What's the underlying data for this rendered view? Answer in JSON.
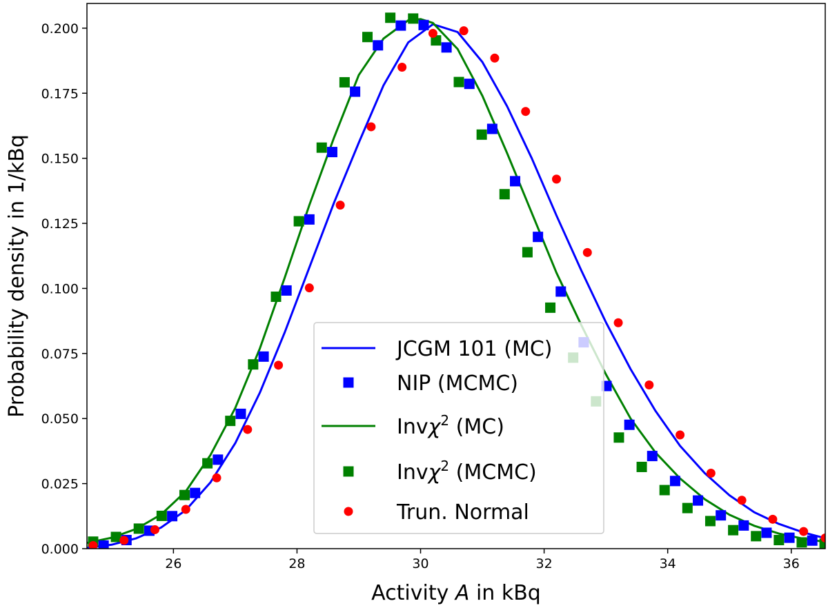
{
  "chart_data": {
    "type": "line",
    "title": "",
    "xlabel_prefix": "Activity ",
    "xlabel_var": "A",
    "xlabel_suffix": " in kBq",
    "ylabel": "Probability density in 1/kBq",
    "xlim": [
      24.6,
      36.55
    ],
    "ylim": [
      0.0,
      0.2095
    ],
    "xticks": [
      26,
      28,
      30,
      32,
      34,
      36
    ],
    "yticks": [
      0.0,
      0.025,
      0.05,
      0.075,
      0.1,
      0.125,
      0.15,
      0.175,
      0.2
    ],
    "xtick_labels": [
      "26",
      "28",
      "30",
      "32",
      "34",
      "36"
    ],
    "ytick_labels": [
      "0.000",
      "0.025",
      "0.050",
      "0.075",
      "0.100",
      "0.125",
      "0.150",
      "0.175",
      "0.200"
    ],
    "grid": false,
    "legend_position": "lower-center",
    "series": [
      {
        "name": "JCGM 101 (MC)",
        "legend_main": "JCGM 101 (MC)",
        "kind": "line",
        "color": "#0000ff",
        "x": [
          24.6,
          25.0,
          25.4,
          25.8,
          26.2,
          26.6,
          27.0,
          27.4,
          27.8,
          28.2,
          28.6,
          29.0,
          29.4,
          29.8,
          30.2,
          30.6,
          31.0,
          31.4,
          31.8,
          32.2,
          32.6,
          33.0,
          33.4,
          33.8,
          34.2,
          34.6,
          35.0,
          35.4,
          35.8,
          36.2,
          36.55
        ],
        "y": [
          0.0003,
          0.0015,
          0.004,
          0.0081,
          0.0148,
          0.0255,
          0.0405,
          0.06,
          0.083,
          0.108,
          0.133,
          0.156,
          0.178,
          0.1945,
          0.2015,
          0.1985,
          0.187,
          0.17,
          0.15,
          0.128,
          0.107,
          0.087,
          0.069,
          0.053,
          0.0395,
          0.029,
          0.0205,
          0.014,
          0.0095,
          0.0062,
          0.004
        ]
      },
      {
        "name": "NIP (MCMC)",
        "legend_main": "NIP (MCMC)",
        "kind": "square",
        "color": "#0000ff",
        "x": [
          24.87,
          25.24,
          25.61,
          25.98,
          26.35,
          26.72,
          27.09,
          27.46,
          27.83,
          28.2,
          28.57,
          28.94,
          29.31,
          29.68,
          30.05,
          30.42,
          30.79,
          31.16,
          31.53,
          31.9,
          32.27,
          32.64,
          33.01,
          33.38,
          33.75,
          34.12,
          34.49,
          34.86,
          35.23,
          35.6,
          35.97,
          36.34
        ],
        "y": [
          0.0012,
          0.0033,
          0.0069,
          0.0125,
          0.0214,
          0.0342,
          0.0518,
          0.0738,
          0.0992,
          0.1265,
          0.1524,
          0.1756,
          0.1934,
          0.201,
          0.2012,
          0.1926,
          0.1786,
          0.1613,
          0.1412,
          0.1198,
          0.0988,
          0.0793,
          0.0625,
          0.0476,
          0.0356,
          0.026,
          0.0185,
          0.0128,
          0.0089,
          0.0061,
          0.0042,
          0.0031
        ]
      },
      {
        "name": "Invchi2 (MC)",
        "legend_main": "Inv",
        "kind": "line",
        "color": "#008000",
        "x": [
          24.6,
          25.0,
          25.4,
          25.8,
          26.2,
          26.6,
          27.0,
          27.4,
          27.8,
          28.2,
          28.6,
          29.0,
          29.4,
          29.8,
          30.0,
          30.2,
          30.6,
          31.0,
          31.4,
          31.8,
          32.2,
          32.6,
          33.0,
          33.4,
          33.8,
          34.2,
          34.6,
          35.0,
          35.4,
          35.8,
          36.2,
          36.55
        ],
        "y": [
          0.0022,
          0.0042,
          0.0076,
          0.0131,
          0.022,
          0.036,
          0.054,
          0.077,
          0.104,
          0.132,
          0.158,
          0.182,
          0.196,
          0.203,
          0.2035,
          0.202,
          0.192,
          0.174,
          0.152,
          0.129,
          0.106,
          0.086,
          0.067,
          0.05,
          0.037,
          0.027,
          0.019,
          0.013,
          0.0088,
          0.0058,
          0.0038,
          0.0026
        ]
      },
      {
        "name": "Invchi2 (MCMC)",
        "legend_main": "Inv",
        "kind": "square",
        "color": "#008000",
        "x": [
          24.7,
          25.07,
          25.44,
          25.81,
          26.18,
          26.55,
          26.92,
          27.29,
          27.66,
          28.03,
          28.4,
          28.77,
          29.14,
          29.51,
          29.88,
          30.25,
          30.62,
          30.99,
          31.36,
          31.73,
          32.1,
          32.47,
          32.84,
          33.21,
          33.58,
          33.95,
          34.32,
          34.69,
          35.06,
          35.43,
          35.8,
          36.17,
          36.54
        ],
        "y": [
          0.0027,
          0.0045,
          0.0077,
          0.0126,
          0.0206,
          0.0328,
          0.0491,
          0.0708,
          0.0968,
          0.1258,
          0.1541,
          0.1792,
          0.1966,
          0.204,
          0.2037,
          0.1953,
          0.1793,
          0.1591,
          0.1362,
          0.1139,
          0.0926,
          0.0734,
          0.0566,
          0.0427,
          0.0314,
          0.0225,
          0.0156,
          0.0106,
          0.0071,
          0.0048,
          0.0033,
          0.0024,
          0.0019
        ]
      },
      {
        "name": "Trun. Normal",
        "legend_main": "Trun. Normal",
        "kind": "circle",
        "color": "#ff0000",
        "x": [
          24.7,
          25.2,
          25.7,
          26.2,
          26.7,
          27.2,
          27.7,
          28.2,
          28.7,
          29.2,
          29.7,
          30.2,
          30.7,
          31.2,
          31.7,
          32.2,
          32.7,
          33.2,
          33.7,
          34.2,
          34.7,
          35.2,
          35.7,
          36.2,
          36.55
        ],
        "y": [
          0.0012,
          0.0032,
          0.0073,
          0.0151,
          0.0272,
          0.0458,
          0.0705,
          0.1002,
          0.132,
          0.1621,
          0.185,
          0.198,
          0.199,
          0.1885,
          0.168,
          0.142,
          0.1138,
          0.0868,
          0.0629,
          0.0437,
          0.029,
          0.0186,
          0.0113,
          0.0066,
          0.0041
        ]
      }
    ]
  }
}
